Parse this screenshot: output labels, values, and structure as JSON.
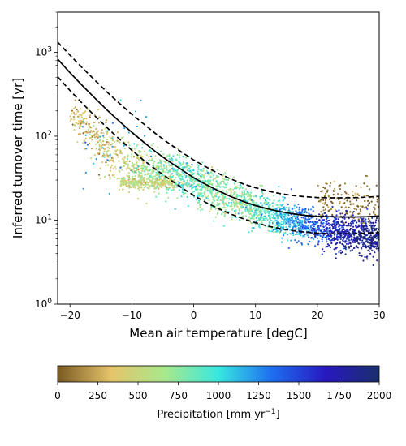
{
  "chart_data": {
    "type": "scatter",
    "title": "",
    "xlabel": "Mean air temperature [degC]",
    "ylabel": "Inferred turnover time [yr]",
    "xlim": [
      -22,
      30
    ],
    "ylim": [
      1,
      3000
    ],
    "yscale": "log",
    "grid": false,
    "x_ticks": [
      -20,
      -10,
      0,
      10,
      20,
      30
    ],
    "y_ticks": [
      {
        "value": 1,
        "base": "10",
        "exp": "0"
      },
      {
        "value": 10,
        "base": "10",
        "exp": "1"
      },
      {
        "value": 100,
        "base": "10",
        "exp": "2"
      },
      {
        "value": 1000,
        "base": "10",
        "exp": "3"
      }
    ],
    "fit_lines": [
      {
        "style": "solid",
        "color": "#000000",
        "x": [
          -22,
          -20,
          -18,
          -16,
          -14,
          -12,
          -10,
          -8,
          -6,
          -4,
          -2,
          0,
          2,
          4,
          6,
          8,
          10,
          12,
          14,
          16,
          18,
          20,
          22,
          24,
          26,
          28,
          30
        ],
        "y": [
          830,
          570,
          400,
          285,
          205,
          150,
          111,
          84,
          64,
          50,
          40,
          32,
          26.5,
          22.3,
          19.1,
          16.7,
          14.9,
          13.6,
          12.6,
          11.9,
          11.4,
          11.1,
          11.0,
          10.9,
          10.9,
          11.0,
          11.2
        ]
      },
      {
        "style": "dashed",
        "color": "#000000",
        "x": [
          -22,
          -20,
          -18,
          -16,
          -14,
          -12,
          -10,
          -8,
          -6,
          -4,
          -2,
          0,
          2,
          4,
          6,
          8,
          10,
          12,
          14,
          16,
          18,
          20,
          22,
          24,
          26,
          28,
          30
        ],
        "y": [
          1320,
          920,
          650,
          465,
          335,
          245,
          182,
          138,
          105,
          82,
          65,
          52,
          43,
          36,
          31,
          27,
          24.3,
          22.2,
          20.7,
          19.7,
          19.0,
          18.6,
          18.4,
          18.4,
          18.5,
          18.8,
          19.2
        ]
      },
      {
        "style": "dashed",
        "color": "#000000",
        "x": [
          -22,
          -20,
          -18,
          -16,
          -14,
          -12,
          -10,
          -8,
          -6,
          -4,
          -2,
          0,
          2,
          4,
          6,
          8,
          10,
          12,
          14,
          16,
          18,
          20,
          22,
          24,
          26,
          28,
          30
        ],
        "y": [
          510,
          350,
          245,
          175,
          126,
          92,
          68,
          51,
          39.5,
          31,
          24.5,
          19.7,
          16.2,
          13.7,
          11.8,
          10.4,
          9.3,
          8.5,
          7.9,
          7.5,
          7.2,
          7.0,
          6.9,
          6.9,
          6.9,
          7.0,
          7.1
        ]
      }
    ],
    "scatter_trend": [
      {
        "x": -20,
        "y": 190,
        "spread": 0.08,
        "precip": 270
      },
      {
        "x": -18,
        "y": 140,
        "spread": 0.12,
        "precip": 300
      },
      {
        "x": -16,
        "y": 100,
        "spread": 0.14,
        "precip": 320
      },
      {
        "x": -14,
        "y": 70,
        "spread": 0.15,
        "precip": 380
      },
      {
        "x": -12,
        "y": 50,
        "spread": 0.16,
        "precip": 450
      },
      {
        "x": -10,
        "y": 42,
        "spread": 0.14,
        "precip": 520
      },
      {
        "x": -8,
        "y": 40,
        "spread": 0.13,
        "precip": 620
      },
      {
        "x": -6,
        "y": 38,
        "spread": 0.12,
        "precip": 700
      },
      {
        "x": -4,
        "y": 36,
        "spread": 0.12,
        "precip": 780
      },
      {
        "x": -2,
        "y": 33,
        "spread": 0.12,
        "precip": 820
      },
      {
        "x": 0,
        "y": 29,
        "spread": 0.12,
        "precip": 850
      },
      {
        "x": 2,
        "y": 25,
        "spread": 0.12,
        "precip": 800
      },
      {
        "x": 4,
        "y": 21,
        "spread": 0.12,
        "precip": 750
      },
      {
        "x": 6,
        "y": 18,
        "spread": 0.11,
        "precip": 730
      },
      {
        "x": 8,
        "y": 15.5,
        "spread": 0.11,
        "precip": 750
      },
      {
        "x": 10,
        "y": 13.5,
        "spread": 0.11,
        "precip": 850
      },
      {
        "x": 12,
        "y": 12,
        "spread": 0.11,
        "precip": 950
      },
      {
        "x": 14,
        "y": 10.8,
        "spread": 0.1,
        "precip": 1050
      },
      {
        "x": 16,
        "y": 9.7,
        "spread": 0.1,
        "precip": 1200
      },
      {
        "x": 18,
        "y": 8.8,
        "spread": 0.1,
        "precip": 1350
      },
      {
        "x": 20,
        "y": 8.2,
        "spread": 0.1,
        "precip": 1500
      },
      {
        "x": 22,
        "y": 7.6,
        "spread": 0.1,
        "precip": 1600
      },
      {
        "x": 24,
        "y": 7.1,
        "spread": 0.11,
        "precip": 1700
      },
      {
        "x": 26,
        "y": 6.7,
        "spread": 0.11,
        "precip": 1800
      },
      {
        "x": 28,
        "y": 6.4,
        "spread": 0.12,
        "precip": 1850
      },
      {
        "x": 30,
        "y": 6.2,
        "spread": 0.12,
        "precip": 1900
      }
    ],
    "scatter_clusters": [
      {
        "label": "cold-dry plateau",
        "x_range": [
          -12,
          -3
        ],
        "y": 27.5,
        "spread": 0.03,
        "precip": 500
      },
      {
        "label": "warm-dry outliers",
        "x_range": [
          20,
          30
        ],
        "y": 17,
        "spread": 0.12,
        "precip": 60
      },
      {
        "label": "cold-wet outliers",
        "x_range": [
          -18,
          -6
        ],
        "y": 90,
        "spread": 0.25,
        "precip": 1150
      }
    ]
  },
  "colorbar": {
    "label_main": "Precipitation [mm yr",
    "label_exp": "−1",
    "label_end": "]",
    "min": 0,
    "max": 2000,
    "ticks": [
      "0",
      "250",
      "500",
      "750",
      "1000",
      "1250",
      "1500",
      "1750",
      "2000"
    ],
    "colormap": [
      "#7a5a22",
      "#e5c46a",
      "#a8e88c",
      "#38e8e0",
      "#1e6ef0",
      "#2818c0",
      "#1a2f6b"
    ]
  }
}
